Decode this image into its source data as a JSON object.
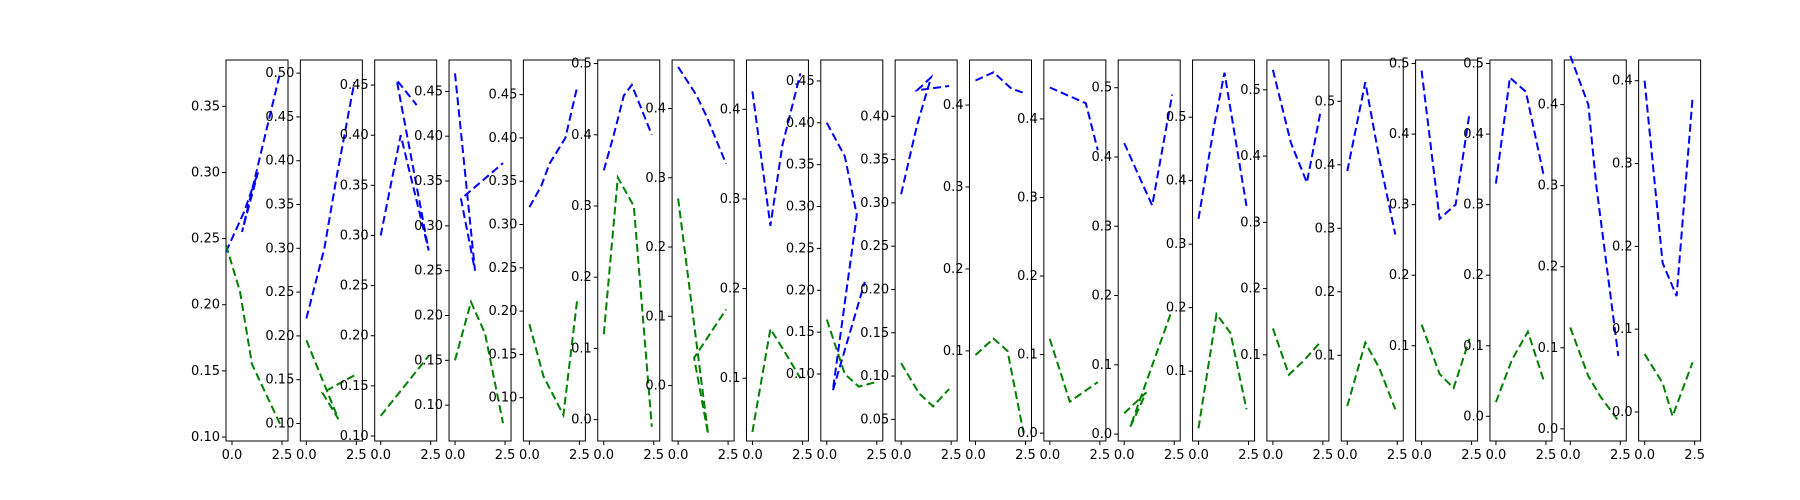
{
  "chart_data": {
    "type": "line",
    "series_colors": [
      "#0000ff",
      "#008000"
    ],
    "xlim": [
      -0.3,
      2.8
    ],
    "xticks": [
      0,
      2.5
    ],
    "xtick_labels": [
      "0.0",
      "2.5"
    ],
    "panels": [
      {
        "ylim": [
          0.097,
          0.385
        ],
        "yticks": [
          0.1,
          0.15,
          0.2,
          0.25,
          0.3,
          0.35
        ],
        "ytick_labels": [
          "0.10",
          "0.15",
          "0.20",
          "0.25",
          "0.30",
          "0.35"
        ],
        "series": [
          {
            "x": [
              -0.3,
              0.6,
              1.3,
              0.5,
              2.4
            ],
            "y": [
              0.24,
              0.27,
              0.3,
              0.255,
              0.375
            ]
          },
          {
            "x": [
              -0.3,
              0.4,
              1.0,
              2.4
            ],
            "y": [
              0.245,
              0.21,
              0.155,
              0.11
            ]
          }
        ]
      },
      {
        "ylim": [
          0.08,
          0.515
        ],
        "yticks": [
          0.1,
          0.15,
          0.2,
          0.25,
          0.3,
          0.35,
          0.4,
          0.45,
          0.5
        ],
        "ytick_labels": [
          "0.10",
          "0.15",
          "0.20",
          "0.25",
          "0.30",
          "0.35",
          "0.40",
          "0.45",
          "0.50"
        ],
        "series": [
          {
            "x": [
              0.0,
              0.9,
              1.5,
              2.4
            ],
            "y": [
              0.22,
              0.3,
              0.38,
              0.49
            ]
          },
          {
            "x": [
              0.0,
              1.6,
              0.8,
              2.4
            ],
            "y": [
              0.195,
              0.105,
              0.135,
              0.155
            ]
          }
        ]
      },
      {
        "ylim": [
          0.095,
          0.475
        ],
        "yticks": [
          0.1,
          0.15,
          0.2,
          0.25,
          0.3,
          0.35,
          0.4,
          0.45
        ],
        "ytick_labels": [
          "0.10",
          "0.15",
          "0.20",
          "0.25",
          "0.30",
          "0.35",
          "0.40",
          "0.45"
        ],
        "series": [
          {
            "x": [
              0.0,
              1.0,
              2.4,
              0.8,
              1.8
            ],
            "y": [
              0.3,
              0.4,
              0.285,
              0.455,
              0.43
            ]
          },
          {
            "x": [
              0.0,
              1.0,
              2.4
            ],
            "y": [
              0.12,
              0.145,
              0.18
            ]
          }
        ]
      },
      {
        "ylim": [
          0.06,
          0.485
        ],
        "yticks": [
          0.1,
          0.15,
          0.2,
          0.25,
          0.3,
          0.35,
          0.4,
          0.45
        ],
        "ytick_labels": [
          "0.10",
          "0.15",
          "0.20",
          "0.25",
          "0.30",
          "0.35",
          "0.40",
          "0.45"
        ],
        "series": [
          {
            "x": [
              0.0,
              1.0,
              0.3,
              2.4
            ],
            "y": [
              0.47,
              0.25,
              0.33,
              0.37
            ]
          },
          {
            "x": [
              0.0,
              0.8,
              1.5,
              2.4
            ],
            "y": [
              0.15,
              0.215,
              0.18,
              0.08
            ]
          }
        ]
      },
      {
        "ylim": [
          0.05,
          0.49
        ],
        "yticks": [
          0.1,
          0.15,
          0.2,
          0.25,
          0.3,
          0.35,
          0.4,
          0.45
        ],
        "ytick_labels": [
          "0.10",
          "0.15",
          "0.20",
          "0.25",
          "0.30",
          "0.35",
          "0.40",
          "0.45"
        ],
        "series": [
          {
            "x": [
              0.0,
              0.6,
              1.0,
              1.8,
              2.4
            ],
            "y": [
              0.32,
              0.345,
              0.37,
              0.4,
              0.46
            ]
          },
          {
            "x": [
              0.0,
              0.7,
              1.7,
              2.4
            ],
            "y": [
              0.185,
              0.125,
              0.08,
              0.215
            ]
          }
        ]
      },
      {
        "ylim": [
          -0.03,
          0.505
        ],
        "yticks": [
          0.0,
          0.1,
          0.2,
          0.3,
          0.4,
          0.5
        ],
        "ytick_labels": [
          "0.0",
          "0.1",
          "0.2",
          "0.3",
          "0.4",
          "0.5"
        ],
        "series": [
          {
            "x": [
              0.0,
              0.5,
              1.0,
              1.4,
              2.4
            ],
            "y": [
              0.35,
              0.4,
              0.455,
              0.47,
              0.4
            ]
          },
          {
            "x": [
              0.0,
              0.7,
              1.5,
              2.4
            ],
            "y": [
              0.12,
              0.34,
              0.3,
              -0.01
            ]
          }
        ]
      },
      {
        "ylim": [
          -0.08,
          0.47
        ],
        "yticks": [
          0.0,
          0.1,
          0.2,
          0.3,
          0.4
        ],
        "ytick_labels": [
          "0.0",
          "0.1",
          "0.2",
          "0.3",
          "0.4"
        ],
        "series": [
          {
            "x": [
              0.0,
              0.9,
              1.4,
              2.4
            ],
            "y": [
              0.46,
              0.42,
              0.39,
              0.32
            ]
          },
          {
            "x": [
              0.0,
              1.5,
              0.8,
              2.4
            ],
            "y": [
              0.27,
              -0.07,
              0.04,
              0.11
            ]
          }
        ]
      },
      {
        "ylim": [
          0.03,
          0.455
        ],
        "yticks": [
          0.1,
          0.2,
          0.3,
          0.4
        ],
        "ytick_labels": [
          "0.1",
          "0.2",
          "0.3",
          "0.4"
        ],
        "series": [
          {
            "x": [
              0.0,
              0.9,
              1.5,
              2.4
            ],
            "y": [
              0.42,
              0.27,
              0.36,
              0.44
            ]
          },
          {
            "x": [
              0.0,
              0.9,
              1.6,
              2.4
            ],
            "y": [
              0.04,
              0.155,
              0.13,
              0.1
            ]
          }
        ]
      },
      {
        "ylim": [
          0.02,
          0.475
        ],
        "yticks": [
          0.1,
          0.15,
          0.2,
          0.25,
          0.3,
          0.35,
          0.4,
          0.45
        ],
        "ytick_labels": [
          "0.10",
          "0.15",
          "0.20",
          "0.25",
          "0.30",
          "0.35",
          "0.40",
          "0.45"
        ],
        "series": [
          {
            "x": [
              0.0,
              0.9,
              1.5,
              0.3,
              1.9
            ],
            "y": [
              0.4,
              0.36,
              0.29,
              0.08,
              0.21
            ]
          },
          {
            "x": [
              0.0,
              0.9,
              1.6,
              2.4
            ],
            "y": [
              0.165,
              0.1,
              0.085,
              0.09
            ]
          }
        ]
      },
      {
        "ylim": [
          0.025,
          0.465
        ],
        "yticks": [
          0.05,
          0.1,
          0.15,
          0.2,
          0.25,
          0.3,
          0.35,
          0.4
        ],
        "ytick_labels": [
          "0.05",
          "0.10",
          "0.15",
          "0.20",
          "0.25",
          "0.30",
          "0.35",
          "0.40"
        ],
        "series": [
          {
            "x": [
              0.0,
              0.8,
              1.5,
              0.8,
              2.4
            ],
            "y": [
              0.31,
              0.39,
              0.445,
              0.43,
              0.435
            ]
          },
          {
            "x": [
              0.0,
              0.9,
              1.6,
              2.4
            ],
            "y": [
              0.115,
              0.08,
              0.065,
              0.085
            ]
          }
        ]
      },
      {
        "ylim": [
          -0.01,
          0.455
        ],
        "yticks": [
          0.1,
          0.2,
          0.3,
          0.4
        ],
        "ytick_labels": [
          "0.1",
          "0.2",
          "0.3",
          "0.4"
        ],
        "series": [
          {
            "x": [
              0.0,
              0.9,
              1.8,
              2.4
            ],
            "y": [
              0.43,
              0.44,
              0.42,
              0.415
            ]
          },
          {
            "x": [
              0.0,
              0.9,
              1.6,
              2.4
            ],
            "y": [
              0.095,
              0.115,
              0.1,
              0.0
            ]
          }
        ]
      },
      {
        "ylim": [
          -0.01,
          0.475
        ],
        "yticks": [
          0.0,
          0.1,
          0.2,
          0.3,
          0.4
        ],
        "ytick_labels": [
          "0.0",
          "0.1",
          "0.2",
          "0.3",
          "0.4"
        ],
        "series": [
          {
            "x": [
              0.0,
              0.9,
              1.8,
              2.4
            ],
            "y": [
              0.44,
              0.43,
              0.42,
              0.36
            ]
          },
          {
            "x": [
              0.0,
              1.0,
              2.4
            ],
            "y": [
              0.12,
              0.04,
              0.065
            ]
          }
        ]
      },
      {
        "ylim": [
          -0.01,
          0.54
        ],
        "yticks": [
          0.0,
          0.1,
          0.2,
          0.3,
          0.4,
          0.5
        ],
        "ytick_labels": [
          "0.0",
          "0.1",
          "0.2",
          "0.3",
          "0.4",
          "0.5"
        ],
        "series": [
          {
            "x": [
              0.0,
              0.7,
              1.4,
              2.4
            ],
            "y": [
              0.42,
              0.375,
              0.33,
              0.49
            ]
          },
          {
            "x": [
              0.0,
              1.1,
              0.3,
              2.4
            ],
            "y": [
              0.03,
              0.06,
              0.01,
              0.18
            ]
          }
        ]
      },
      {
        "ylim": [
          -0.01,
          0.59
        ],
        "yticks": [
          0.1,
          0.2,
          0.3,
          0.4,
          0.5
        ],
        "ytick_labels": [
          "0.1",
          "0.2",
          "0.3",
          "0.4",
          "0.5"
        ],
        "series": [
          {
            "x": [
              0.0,
              0.8,
              1.3,
              2.4
            ],
            "y": [
              0.34,
              0.49,
              0.57,
              0.36
            ]
          },
          {
            "x": [
              0.0,
              0.9,
              1.6,
              2.4
            ],
            "y": [
              0.01,
              0.19,
              0.16,
              0.04
            ]
          }
        ]
      },
      {
        "ylim": [
          -0.03,
          0.545
        ],
        "yticks": [
          0.1,
          0.2,
          0.3,
          0.4,
          0.5
        ],
        "ytick_labels": [
          "0.1",
          "0.2",
          "0.3",
          "0.4",
          "0.5"
        ],
        "series": [
          {
            "x": [
              0.0,
              0.9,
              1.7,
              2.4
            ],
            "y": [
              0.53,
              0.42,
              0.36,
              0.47
            ]
          },
          {
            "x": [
              0.0,
              0.8,
              1.5,
              2.4
            ],
            "y": [
              0.14,
              0.07,
              0.09,
              0.12
            ]
          }
        ]
      },
      {
        "ylim": [
          -0.035,
          0.565
        ],
        "yticks": [
          0.1,
          0.2,
          0.3,
          0.4,
          0.5
        ],
        "ytick_labels": [
          "0.1",
          "0.2",
          "0.3",
          "0.4",
          "0.5"
        ],
        "series": [
          {
            "x": [
              0.0,
              0.9,
              1.6,
              2.4
            ],
            "y": [
              0.39,
              0.53,
              0.41,
              0.29
            ]
          },
          {
            "x": [
              0.0,
              0.9,
              1.6,
              2.4
            ],
            "y": [
              0.02,
              0.12,
              0.08,
              0.015
            ]
          }
        ]
      },
      {
        "ylim": [
          -0.035,
          0.505
        ],
        "yticks": [
          0.1,
          0.2,
          0.3,
          0.4,
          0.5
        ],
        "ytick_labels": [
          "0.1",
          "0.2",
          "0.3",
          "0.4",
          "0.5"
        ],
        "series": [
          {
            "x": [
              0.0,
              0.9,
              1.7,
              2.4
            ],
            "y": [
              0.49,
              0.28,
              0.3,
              0.43
            ]
          },
          {
            "x": [
              0.0,
              0.9,
              1.6,
              2.4
            ],
            "y": [
              0.13,
              0.06,
              0.04,
              0.11
            ]
          }
        ]
      },
      {
        "ylim": [
          -0.035,
          0.505
        ],
        "yticks": [
          0.0,
          0.1,
          0.2,
          0.3,
          0.4,
          0.5
        ],
        "ytick_labels": [
          "0.0",
          "0.1",
          "0.2",
          "0.3",
          "0.4",
          "0.5"
        ],
        "series": [
          {
            "x": [
              0.0,
              0.7,
              1.5,
              2.4
            ],
            "y": [
              0.33,
              0.48,
              0.46,
              0.34
            ]
          },
          {
            "x": [
              0.0,
              0.8,
              1.6,
              2.4
            ],
            "y": [
              0.02,
              0.08,
              0.12,
              0.05
            ]
          }
        ]
      },
      {
        "ylim": [
          -0.015,
          0.455
        ],
        "yticks": [
          0.0,
          0.1,
          0.2,
          0.3,
          0.4
        ],
        "ytick_labels": [
          "0.0",
          "0.1",
          "0.2",
          "0.3",
          "0.4"
        ],
        "series": [
          {
            "x": [
              0.0,
              0.9,
              1.3,
              2.4
            ],
            "y": [
              0.46,
              0.4,
              0.3,
              0.09
            ]
          },
          {
            "x": [
              0.0,
              0.9,
              1.5,
              2.4
            ],
            "y": [
              0.125,
              0.065,
              0.04,
              0.01
            ]
          }
        ]
      },
      {
        "ylim": [
          -0.035,
          0.425
        ],
        "yticks": [
          0.0,
          0.1,
          0.2,
          0.3,
          0.4
        ],
        "ytick_labels": [
          "0.0",
          "0.1",
          "0.2",
          "0.3",
          "0.4"
        ],
        "series": [
          {
            "x": [
              0.0,
              0.9,
              1.6,
              2.4
            ],
            "y": [
              0.4,
              0.18,
              0.14,
              0.38
            ]
          },
          {
            "x": [
              0.0,
              0.9,
              1.4,
              2.4
            ],
            "y": [
              0.07,
              0.035,
              -0.005,
              0.06
            ]
          }
        ]
      }
    ]
  }
}
